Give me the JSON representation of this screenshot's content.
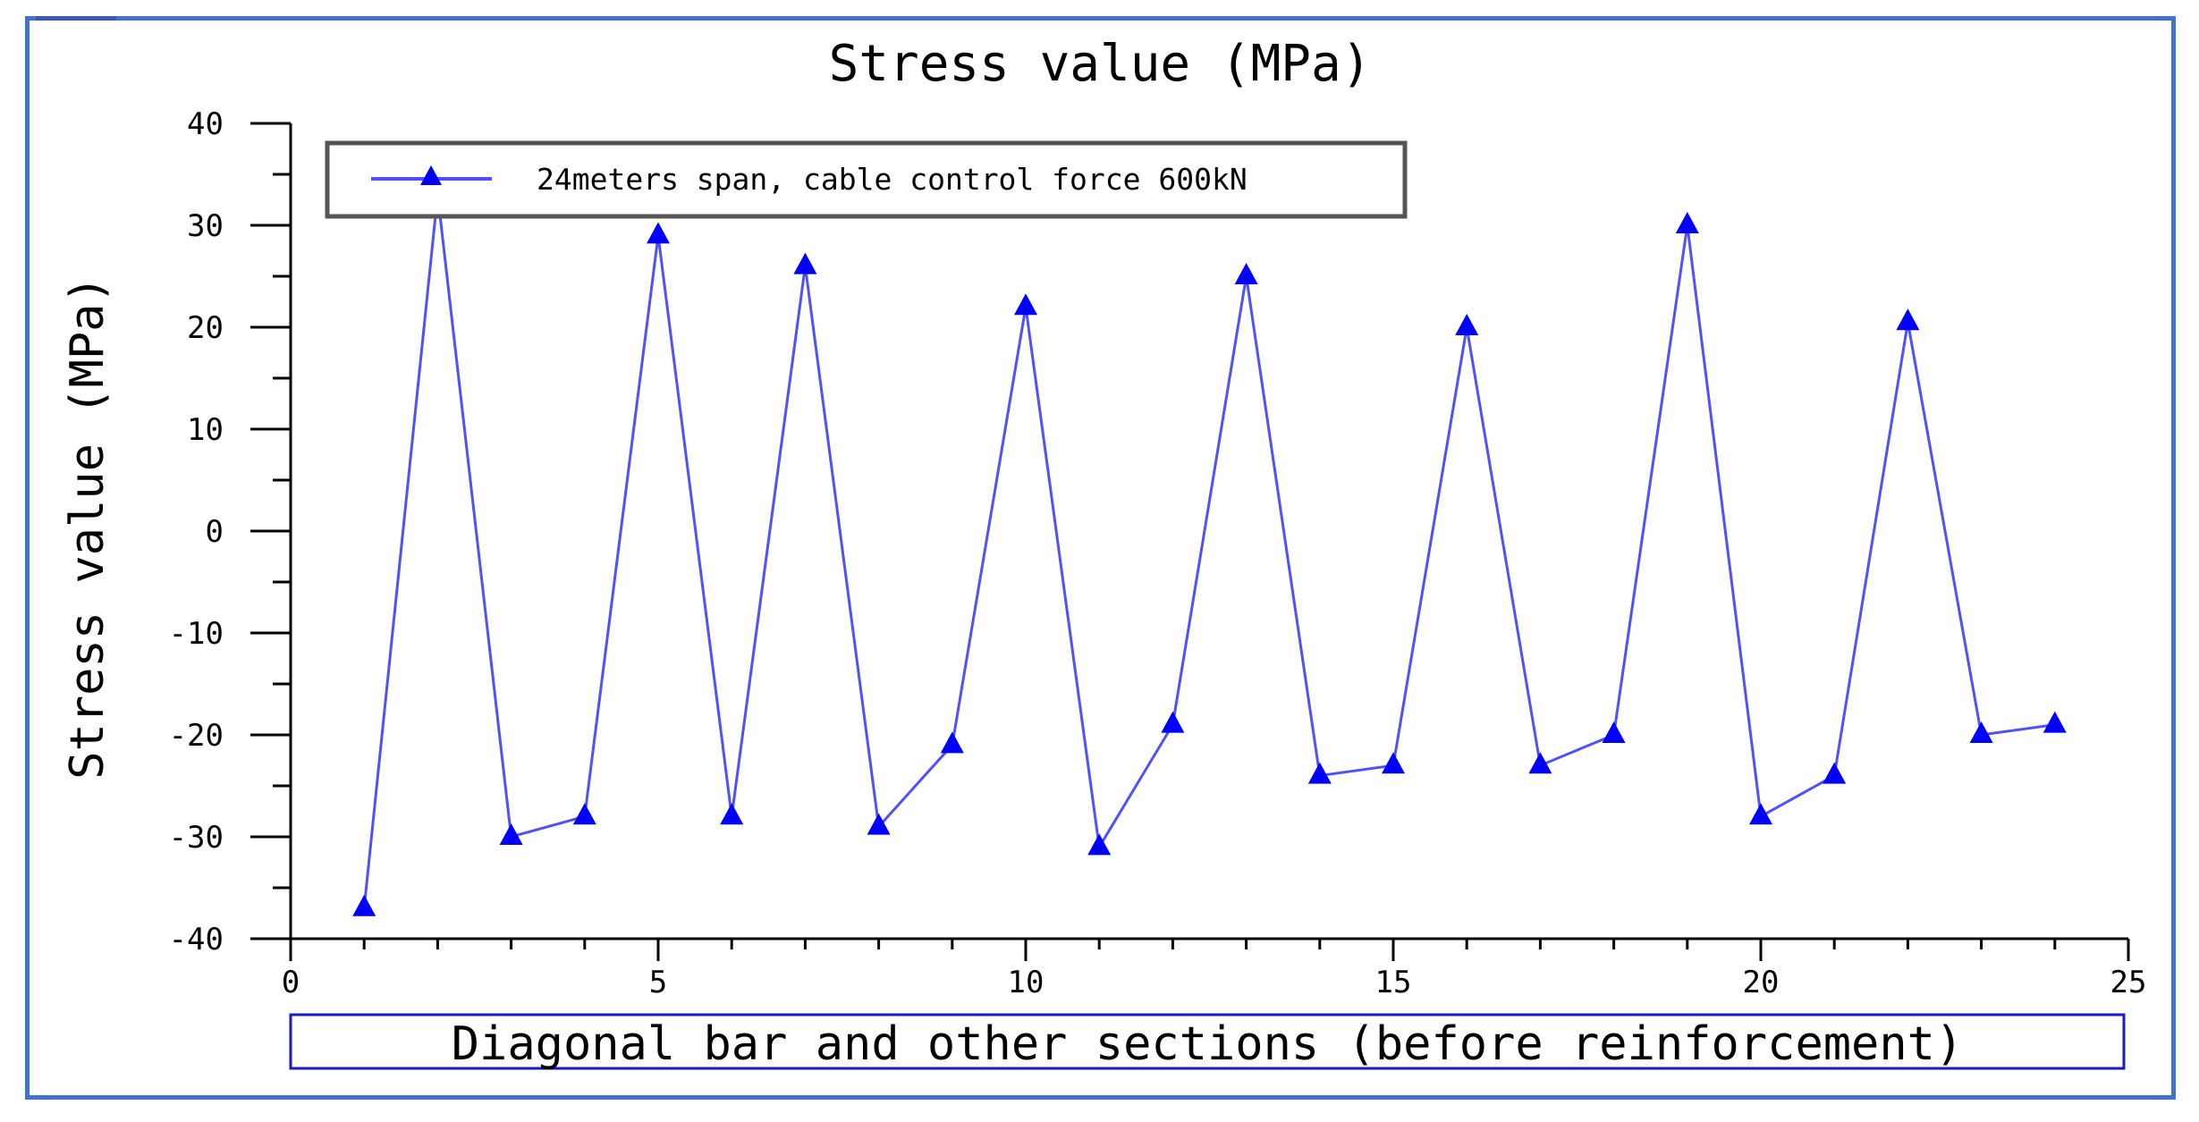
{
  "chart_data": {
    "type": "line",
    "title": "Stress value (MPa)",
    "xlabel": "Diagonal bar and other sections (before reinforcement)",
    "ylabel": "Stress value (MPa)",
    "xlim": [
      0,
      25
    ],
    "ylim": [
      -40,
      40
    ],
    "x_ticks": [
      0,
      5,
      10,
      15,
      20,
      25
    ],
    "y_ticks": [
      -40,
      -30,
      -20,
      -10,
      0,
      10,
      20,
      30,
      40
    ],
    "grid": false,
    "legend_position": "top-left",
    "series": [
      {
        "name": "24meters span, cable control force 600kN",
        "color": "#0000ff",
        "line_color": "#5050ff",
        "marker": "triangle",
        "x": [
          1,
          2,
          3,
          4,
          5,
          6,
          7,
          8,
          9,
          10,
          11,
          12,
          13,
          14,
          15,
          16,
          17,
          18,
          19,
          20,
          21,
          22,
          23,
          24
        ],
        "y": [
          -37,
          33,
          -30,
          -28,
          29,
          -28,
          26,
          -29,
          -21,
          22,
          -31,
          -19,
          25,
          -24,
          -23,
          20,
          -23,
          -20,
          30,
          -28,
          -24,
          20.5,
          -20,
          -19
        ]
      }
    ]
  },
  "colors": {
    "frame_border": "#4472c4",
    "xlabel_box_border": "#1a1acc",
    "legend_border": "#555555"
  }
}
